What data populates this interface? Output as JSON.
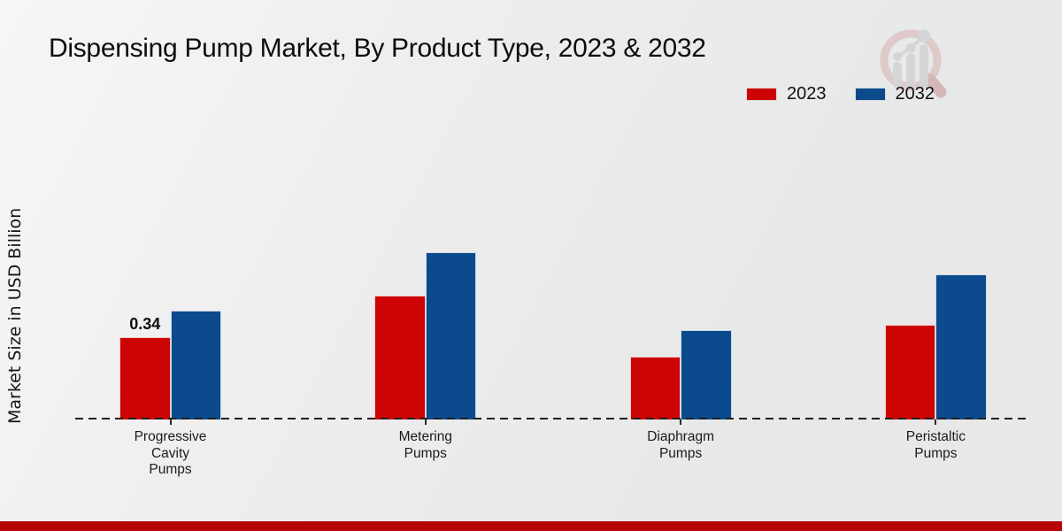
{
  "chart_data": {
    "type": "bar",
    "title": "Dispensing Pump Market, By Product Type, 2023 & 2032",
    "ylabel": "Market Size in USD Billion",
    "xlabel": "",
    "categories": [
      "Progressive Cavity Pumps",
      "Metering Pumps",
      "Diaphragm Pumps",
      "Peristaltic Pumps"
    ],
    "series": [
      {
        "name": "2023",
        "color": "#cc0404",
        "values": [
          0.34,
          0.51,
          0.26,
          0.39
        ]
      },
      {
        "name": "2032",
        "color": "#0b4a8c",
        "values": [
          0.45,
          0.69,
          0.37,
          0.6
        ]
      }
    ],
    "annotations": [
      {
        "text": "0.34",
        "series": "2023",
        "category_index": 0
      }
    ],
    "legend_position": "top-right",
    "grid": false,
    "baseline_style": "dashed",
    "footer_bar_color": "#b50404",
    "watermark_icon": "magnifier-bar-chart-logo",
    "watermark_colors": {
      "ring": "#d9b0b0",
      "handle": "#c99090",
      "bars": "#c6c6c6"
    }
  }
}
